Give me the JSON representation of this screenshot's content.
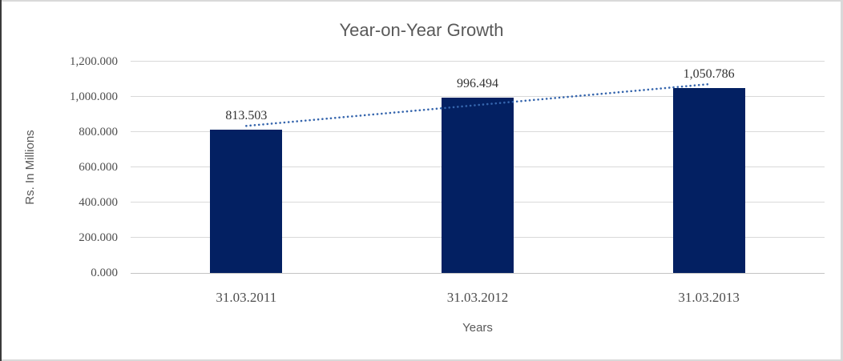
{
  "chart_data": {
    "type": "bar",
    "title": "Year-on-Year Growth",
    "xlabel": "Years",
    "ylabel": "Rs. In Millions",
    "categories": [
      "31.03.2011",
      "31.03.2012",
      "31.03.2013"
    ],
    "values": [
      813.503,
      996.494,
      1050.786
    ],
    "data_labels": [
      "813.503",
      "996.494",
      "1,050.786"
    ],
    "ylim": [
      0,
      1200
    ],
    "y_ticks": [
      {
        "value": 0,
        "label": "0.000"
      },
      {
        "value": 200,
        "label": "200.000"
      },
      {
        "value": 400,
        "label": "400.000"
      },
      {
        "value": 600,
        "label": "600.000"
      },
      {
        "value": 800,
        "label": "800.000"
      },
      {
        "value": 1000,
        "label": "1,000.000"
      },
      {
        "value": 1200,
        "label": "1,200.000"
      }
    ],
    "grid": true,
    "legend": "none",
    "trendline": {
      "type": "linear",
      "style": "dotted",
      "color": "#3565ad"
    },
    "colors": {
      "bar": "#032062",
      "gridline": "#d9d9d9",
      "axis_line": "#c3c3c3",
      "axis_text": "#595959",
      "tick_text": "#4d4d4d",
      "label_text": "#333333",
      "background": "#ffffff",
      "frame": "#d9d9d9",
      "frame_left": "#3a3a3a"
    }
  }
}
